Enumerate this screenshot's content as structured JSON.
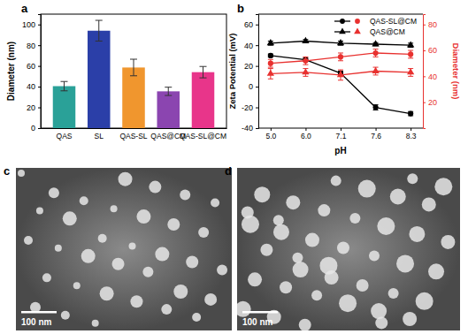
{
  "chart_data": [
    {
      "panel": "a",
      "type": "bar",
      "categories": [
        "QAS",
        "SL",
        "QAS-SL",
        "QAS@CM",
        "QAS-SL@CM"
      ],
      "values": [
        40.5,
        94,
        58.5,
        35.5,
        54
      ],
      "errors": [
        4.5,
        10,
        8,
        4,
        5.5
      ],
      "colors": [
        "#2aa198",
        "#2b3fa8",
        "#f0962e",
        "#8b45b0",
        "#e8358a"
      ],
      "y_label": "Diameter (nm)",
      "ylim": [
        0,
        110
      ],
      "yticks": [
        0,
        20,
        40,
        60,
        80,
        100
      ]
    },
    {
      "panel": "b",
      "type": "line",
      "categories": [
        "5.0",
        "6.0",
        "7.1",
        "7.6",
        "8.3"
      ],
      "x_label": "pH",
      "y_label": "Zeta Potential (mV)",
      "y2_label": "Diameter (nm)",
      "ylim": [
        -40,
        70
      ],
      "yticks": [
        -40,
        -20,
        0,
        20,
        40,
        60
      ],
      "y2lim": [
        0,
        88
      ],
      "y2ticks": [
        20,
        40,
        60,
        80
      ],
      "legend": "upper right",
      "series": [
        {
          "name": "QAS-SL@CM",
          "color": "#000000",
          "marker": "circle",
          "values": [
            30,
            26,
            13,
            -20,
            -26
          ],
          "errors": [
            1.5,
            1.5,
            2,
            2.5,
            2
          ]
        },
        {
          "name": "QAS@CM",
          "color": "#000000",
          "marker": "triangle",
          "values": [
            42,
            44,
            42,
            41,
            40
          ],
          "errors": [
            2,
            1.5,
            2,
            1.5,
            2
          ]
        },
        {
          "name": "QAS-SL@CM",
          "color": "#e8312f",
          "marker": "circle",
          "axis": "y2",
          "values": [
            50,
            52,
            55,
            58,
            57
          ],
          "errors": [
            3,
            3,
            3,
            3,
            3
          ]
        },
        {
          "name": "QAS@CM",
          "color": "#e8312f",
          "marker": "triangle",
          "axis": "y2",
          "values": [
            42,
            43,
            41,
            44,
            43
          ],
          "errors": [
            4,
            3,
            4,
            3,
            3
          ]
        }
      ]
    }
  ],
  "images": [
    {
      "panel": "c",
      "scale_bar": "100 nm"
    },
    {
      "panel": "d",
      "scale_bar": "100 nm"
    }
  ]
}
